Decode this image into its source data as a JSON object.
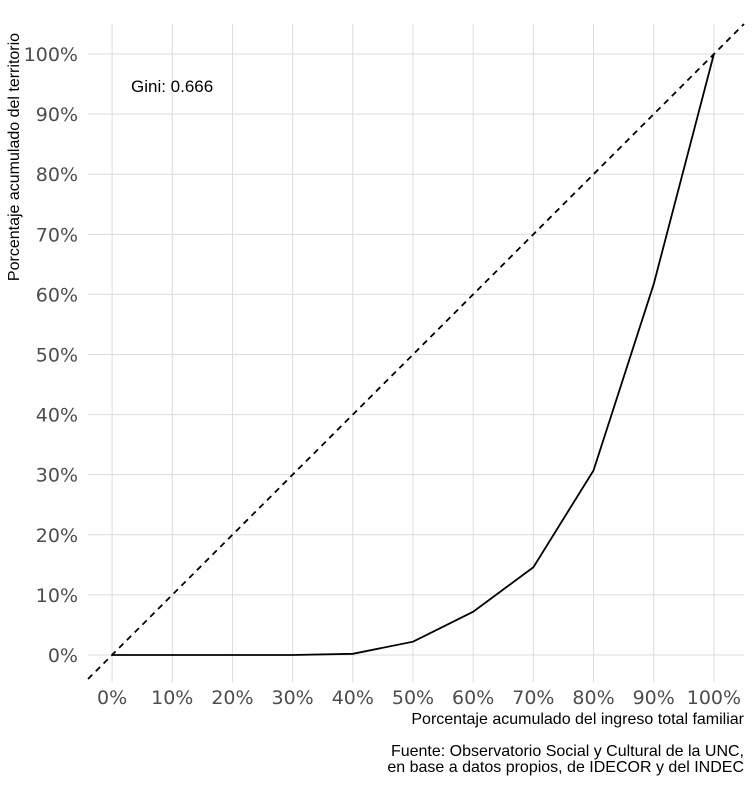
{
  "chart_data": {
    "type": "line",
    "xlabel": "Porcentaje acumulado del ingreso total familiar",
    "ylabel": "Porcentaje acumulado del territorio",
    "annotation": "Gini: 0.666",
    "caption": [
      "Fuente: Observatorio Social y Cultural de la UNC,",
      "en base a datos propios, de IDECOR y del INDEC"
    ],
    "xlim": [
      -0.04,
      1.05
    ],
    "ylim": [
      -0.045,
      1.05
    ],
    "x_ticks": [
      0,
      0.1,
      0.2,
      0.3,
      0.4,
      0.5,
      0.6,
      0.7,
      0.8,
      0.9,
      1.0
    ],
    "x_tick_labels": [
      "0%",
      "10%",
      "20%",
      "30%",
      "40%",
      "50%",
      "60%",
      "70%",
      "80%",
      "90%",
      "100%"
    ],
    "y_ticks": [
      0,
      0.1,
      0.2,
      0.3,
      0.4,
      0.5,
      0.6,
      0.7,
      0.8,
      0.9,
      1.0
    ],
    "y_tick_labels": [
      "0%",
      "10%",
      "20%",
      "30%",
      "40%",
      "50%",
      "60%",
      "70%",
      "80%",
      "90%",
      "100%"
    ],
    "grid": true,
    "series": [
      {
        "style": "solid",
        "color": "#000000",
        "x": [
          0,
          0.1,
          0.2,
          0.3,
          0.4,
          0.5,
          0.6,
          0.7,
          0.8,
          0.9,
          1.0
        ],
        "y": [
          0,
          0,
          0,
          0,
          0.002,
          0.022,
          0.072,
          0.146,
          0.307,
          0.617,
          1.0
        ]
      },
      {
        "style": "dashed",
        "color": "#000000",
        "x": [
          -0.04,
          1.05
        ],
        "y": [
          -0.04,
          1.05
        ]
      }
    ]
  }
}
